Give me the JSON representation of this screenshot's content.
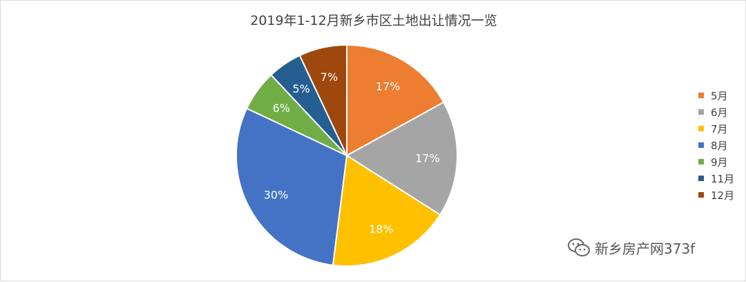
{
  "chart_data": {
    "type": "pie",
    "title": "2019年1-12月新乡市区土地出让情况一览",
    "categories": [
      "5月",
      "6月",
      "7月",
      "8月",
      "9月",
      "11月",
      "12月"
    ],
    "values": [
      17,
      17,
      18,
      30,
      6,
      5,
      7
    ],
    "labels": [
      "17%",
      "17%",
      "18%",
      "30%",
      "6%",
      "5%",
      "7%"
    ],
    "colors": [
      "#ED7D31",
      "#A5A5A5",
      "#FFC000",
      "#4472C4",
      "#70AD47",
      "#255E91",
      "#9E480E"
    ],
    "start_angle_deg": 0,
    "direction": "clockwise",
    "legend_position": "right"
  },
  "watermark": {
    "icon": "wechat-icon",
    "text": "新乡房产网373f"
  }
}
